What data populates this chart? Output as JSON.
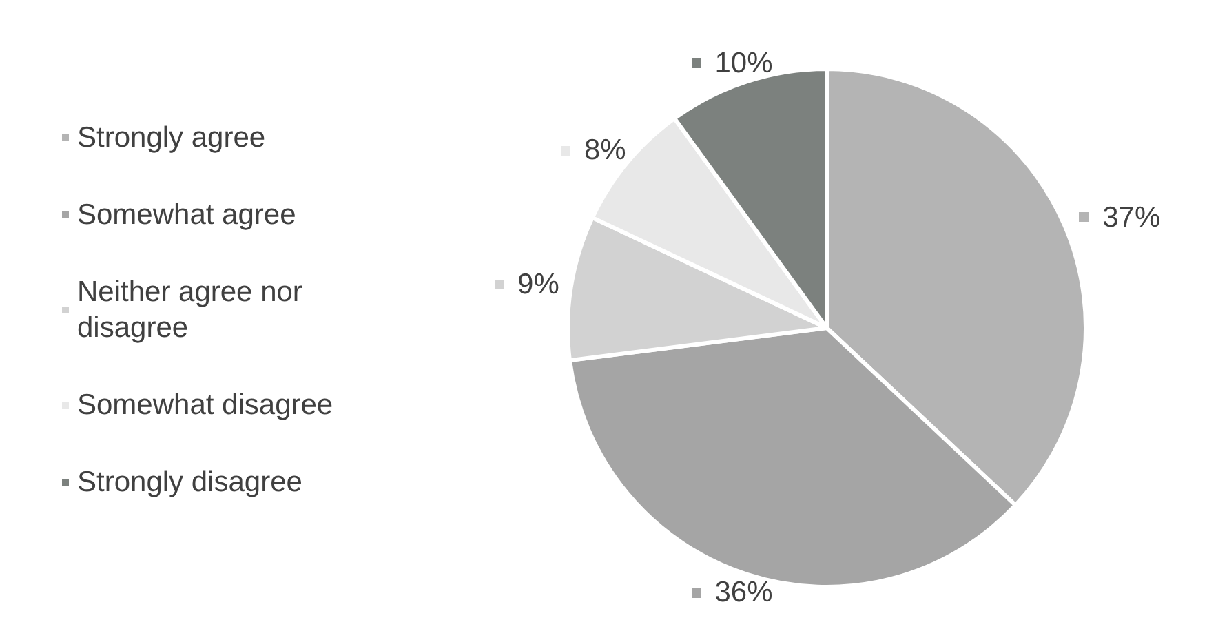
{
  "chart_data": {
    "type": "pie",
    "categories": [
      "Strongly agree",
      "Somewhat agree",
      "Neither agree nor disagree",
      "Somewhat disagree",
      "Strongly disagree"
    ],
    "values": [
      37,
      36,
      9,
      8,
      10
    ],
    "value_labels": [
      "37%",
      "36%",
      "9%",
      "8%",
      "10%"
    ],
    "colors": [
      "#b4b4b4",
      "#a5a5a5",
      "#d2d2d2",
      "#e8e8e8",
      "#7c817e"
    ],
    "legend": "left"
  }
}
